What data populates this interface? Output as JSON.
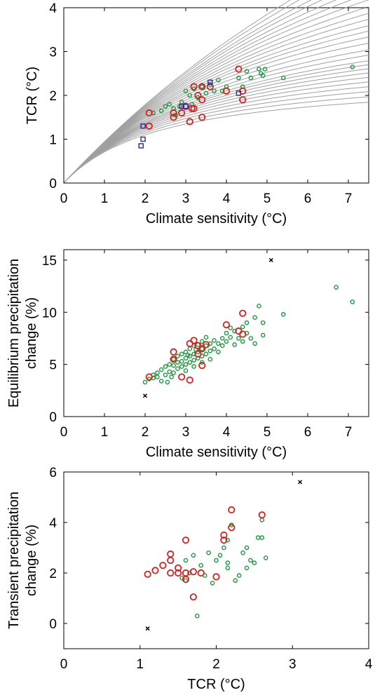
{
  "chart_data": [
    {
      "type": "scatter",
      "xlabel": "Climate sensitivity (°C)",
      "ylabel": "TCR (°C)",
      "xlim": [
        0,
        7.5
      ],
      "ylim": [
        0,
        4
      ],
      "xticks": [
        0,
        1,
        2,
        3,
        4,
        5,
        6,
        7
      ],
      "yticks": [
        0,
        1,
        2,
        3,
        4
      ],
      "curves": {
        "color": "#a0a0a0",
        "kappa": [
          2.2,
          2.4,
          2.6,
          2.8,
          3.0,
          3.2,
          3.4,
          3.6,
          3.8,
          4.0,
          4.3,
          4.6,
          5.0,
          5.4,
          5.8,
          6.2,
          6.7,
          7.2,
          7.8,
          8.5,
          9.2,
          10.0,
          11.0,
          12.0,
          13.5,
          15.0
        ],
        "x_end": 7.5
      },
      "series": [
        {
          "marker": "circle-small",
          "color": "#1a9a3a",
          "points": [
            [
              2.2,
              1.6
            ],
            [
              2.4,
              1.65
            ],
            [
              2.5,
              1.75
            ],
            [
              2.6,
              1.8
            ],
            [
              2.7,
              1.7
            ],
            [
              2.75,
              1.55
            ],
            [
              2.9,
              1.85
            ],
            [
              3.0,
              2.1
            ],
            [
              3.1,
              2.0
            ],
            [
              3.2,
              2.15
            ],
            [
              3.3,
              1.95
            ],
            [
              3.4,
              2.2
            ],
            [
              3.5,
              2.05
            ],
            [
              3.6,
              2.25
            ],
            [
              3.8,
              2.35
            ],
            [
              3.9,
              2.1
            ],
            [
              4.0,
              2.2
            ],
            [
              4.3,
              2.4
            ],
            [
              4.4,
              2.2
            ],
            [
              4.5,
              2.55
            ],
            [
              4.6,
              2.4
            ],
            [
              4.8,
              2.6
            ],
            [
              4.85,
              2.5
            ],
            [
              4.9,
              2.45
            ],
            [
              4.95,
              2.6
            ],
            [
              5.4,
              2.4
            ],
            [
              7.1,
              2.65
            ],
            [
              3.7,
              2.1
            ],
            [
              3.15,
              1.8
            ],
            [
              2.85,
              1.75
            ]
          ]
        },
        {
          "marker": "circle-large",
          "color": "#d62020",
          "points": [
            [
              2.1,
              1.6
            ],
            [
              2.1,
              1.3
            ],
            [
              2.7,
              1.5
            ],
            [
              2.7,
              1.6
            ],
            [
              2.9,
              1.6
            ],
            [
              3.0,
              1.75
            ],
            [
              3.1,
              1.4
            ],
            [
              3.2,
              1.7
            ],
            [
              3.2,
              2.2
            ],
            [
              3.3,
              2.0
            ],
            [
              3.4,
              2.2
            ],
            [
              3.4,
              1.9
            ],
            [
              3.4,
              1.5
            ],
            [
              3.6,
              2.2
            ],
            [
              4.0,
              2.1
            ],
            [
              4.3,
              2.6
            ],
            [
              4.4,
              2.1
            ],
            [
              4.4,
              1.9
            ],
            [
              3.15,
              1.7
            ]
          ]
        },
        {
          "marker": "square",
          "color": "#2a2a8c",
          "points": [
            [
              1.95,
              1.3
            ],
            [
              1.95,
              1.0
            ],
            [
              1.9,
              0.85
            ],
            [
              2.9,
              1.75
            ],
            [
              3.0,
              1.75
            ],
            [
              3.6,
              2.3
            ],
            [
              4.3,
              2.05
            ]
          ]
        }
      ]
    },
    {
      "type": "scatter",
      "xlabel": "Climate sensitivity (°C)",
      "ylabel": "Equilibrium precipitation change (%)",
      "ylabel_lines": [
        "Equilibrium precipitation",
        "change (%)"
      ],
      "xlim": [
        0,
        7.5
      ],
      "ylim": [
        0,
        16
      ],
      "xticks": [
        0,
        1,
        2,
        3,
        4,
        5,
        6,
        7
      ],
      "yticks": [
        0,
        5,
        10,
        15
      ],
      "series": [
        {
          "marker": "circle-small",
          "color": "#1a9a3a",
          "points": [
            [
              2.0,
              3.3
            ],
            [
              2.1,
              3.6
            ],
            [
              2.2,
              4.0
            ],
            [
              2.2,
              3.7
            ],
            [
              2.3,
              4.2
            ],
            [
              2.3,
              3.8
            ],
            [
              2.4,
              4.5
            ],
            [
              2.4,
              3.4
            ],
            [
              2.5,
              4.0
            ],
            [
              2.5,
              4.8
            ],
            [
              2.6,
              5.0
            ],
            [
              2.6,
              4.3
            ],
            [
              2.7,
              5.5
            ],
            [
              2.7,
              4.9
            ],
            [
              2.7,
              4.2
            ],
            [
              2.8,
              5.8
            ],
            [
              2.8,
              5.2
            ],
            [
              2.8,
              4.6
            ],
            [
              2.9,
              6.0
            ],
            [
              2.9,
              5.3
            ],
            [
              2.9,
              4.8
            ],
            [
              3.0,
              6.2
            ],
            [
              3.0,
              5.6
            ],
            [
              3.0,
              5.0
            ],
            [
              3.0,
              4.4
            ],
            [
              3.1,
              6.5
            ],
            [
              3.1,
              5.8
            ],
            [
              3.1,
              5.2
            ],
            [
              3.2,
              6.8
            ],
            [
              3.2,
              6.0
            ],
            [
              3.2,
              5.4
            ],
            [
              3.2,
              4.8
            ],
            [
              3.3,
              6.9
            ],
            [
              3.3,
              6.2
            ],
            [
              3.3,
              5.6
            ],
            [
              3.4,
              7.2
            ],
            [
              3.4,
              6.5
            ],
            [
              3.4,
              5.8
            ],
            [
              3.4,
              5.2
            ],
            [
              3.5,
              7.6
            ],
            [
              3.5,
              6.8
            ],
            [
              3.5,
              6.0
            ],
            [
              3.6,
              7.0
            ],
            [
              3.6,
              6.3
            ],
            [
              3.6,
              5.5
            ],
            [
              3.7,
              7.3
            ],
            [
              3.7,
              6.5
            ],
            [
              3.8,
              7.0
            ],
            [
              3.8,
              6.2
            ],
            [
              3.9,
              7.5
            ],
            [
              3.9,
              6.8
            ],
            [
              4.0,
              8.0
            ],
            [
              4.0,
              7.2
            ],
            [
              4.1,
              8.5
            ],
            [
              4.1,
              7.6
            ],
            [
              4.2,
              8.2
            ],
            [
              4.2,
              6.9
            ],
            [
              4.3,
              7.5
            ],
            [
              4.4,
              8.6
            ],
            [
              4.4,
              7.2
            ],
            [
              4.5,
              9.0
            ],
            [
              4.5,
              8.0
            ],
            [
              4.6,
              7.5
            ],
            [
              4.7,
              9.5
            ],
            [
              4.7,
              7.0
            ],
            [
              4.8,
              10.6
            ],
            [
              4.9,
              9.0
            ],
            [
              4.9,
              7.8
            ],
            [
              5.4,
              9.8
            ],
            [
              6.7,
              12.4
            ],
            [
              7.1,
              11.0
            ],
            [
              2.55,
              3.3
            ],
            [
              2.65,
              3.8
            ],
            [
              3.05,
              5.9
            ],
            [
              3.25,
              6.4
            ]
          ]
        },
        {
          "marker": "circle-large",
          "color": "#d62020",
          "points": [
            [
              2.1,
              3.8
            ],
            [
              2.7,
              6.2
            ],
            [
              2.7,
              5.5
            ],
            [
              2.9,
              3.8
            ],
            [
              3.1,
              3.5
            ],
            [
              3.1,
              7.0
            ],
            [
              3.2,
              7.3
            ],
            [
              3.3,
              6.0
            ],
            [
              3.4,
              4.9
            ],
            [
              3.4,
              6.5
            ],
            [
              3.5,
              6.9
            ],
            [
              4.0,
              8.8
            ],
            [
              4.3,
              8.2
            ],
            [
              4.4,
              9.9
            ],
            [
              4.4,
              7.9
            ],
            [
              3.3,
              6.8
            ]
          ]
        },
        {
          "marker": "x",
          "color": "#000000",
          "points": [
            [
              2.0,
              2.0
            ],
            [
              5.1,
              15.0
            ]
          ]
        }
      ]
    },
    {
      "type": "scatter",
      "xlabel": "TCR (°C)",
      "ylabel": "Transient precipitation change (%)",
      "ylabel_lines": [
        "Transient precipitation",
        "change (%)"
      ],
      "xlim": [
        0,
        4
      ],
      "ylim": [
        -1,
        6
      ],
      "xticks": [
        0,
        1,
        2,
        3,
        4
      ],
      "yticks": [
        0,
        2,
        4,
        6
      ],
      "series": [
        {
          "marker": "circle-small",
          "color": "#1a9a3a",
          "points": [
            [
              1.6,
              1.7
            ],
            [
              1.65,
              2.0
            ],
            [
              1.7,
              2.7
            ],
            [
              1.75,
              0.3
            ],
            [
              1.8,
              2.3
            ],
            [
              1.85,
              1.9
            ],
            [
              1.9,
              2.8
            ],
            [
              1.95,
              1.6
            ],
            [
              2.0,
              2.5
            ],
            [
              2.05,
              2.7
            ],
            [
              2.1,
              3.0
            ],
            [
              2.15,
              3.3
            ],
            [
              2.15,
              2.4
            ],
            [
              2.15,
              2.2
            ],
            [
              2.2,
              3.9
            ],
            [
              2.25,
              1.7
            ],
            [
              2.3,
              1.9
            ],
            [
              2.35,
              2.8
            ],
            [
              2.4,
              3.0
            ],
            [
              2.4,
              2.2
            ],
            [
              2.45,
              2.5
            ],
            [
              2.5,
              2.4
            ],
            [
              2.55,
              3.4
            ],
            [
              2.6,
              3.4
            ],
            [
              2.6,
              4.1
            ],
            [
              2.65,
              2.6
            ],
            [
              1.55,
              1.8
            ],
            [
              1.6,
              2.5
            ]
          ]
        },
        {
          "marker": "circle-large",
          "color": "#d62020",
          "points": [
            [
              1.1,
              1.95
            ],
            [
              1.2,
              2.1
            ],
            [
              1.3,
              2.3
            ],
            [
              1.4,
              2.5
            ],
            [
              1.4,
              2.0
            ],
            [
              1.5,
              2.2
            ],
            [
              1.5,
              2.0
            ],
            [
              1.6,
              3.3
            ],
            [
              1.6,
              2.0
            ],
            [
              1.6,
              1.75
            ],
            [
              1.7,
              1.05
            ],
            [
              1.7,
              2.05
            ],
            [
              1.8,
              2.0
            ],
            [
              2.0,
              1.85
            ],
            [
              2.1,
              3.3
            ],
            [
              2.1,
              3.5
            ],
            [
              2.2,
              4.5
            ],
            [
              2.2,
              3.8
            ],
            [
              2.6,
              4.3
            ],
            [
              1.4,
              2.75
            ]
          ]
        },
        {
          "marker": "x",
          "color": "#000000",
          "points": [
            [
              1.1,
              -0.2
            ],
            [
              3.1,
              5.6
            ]
          ]
        }
      ]
    }
  ]
}
